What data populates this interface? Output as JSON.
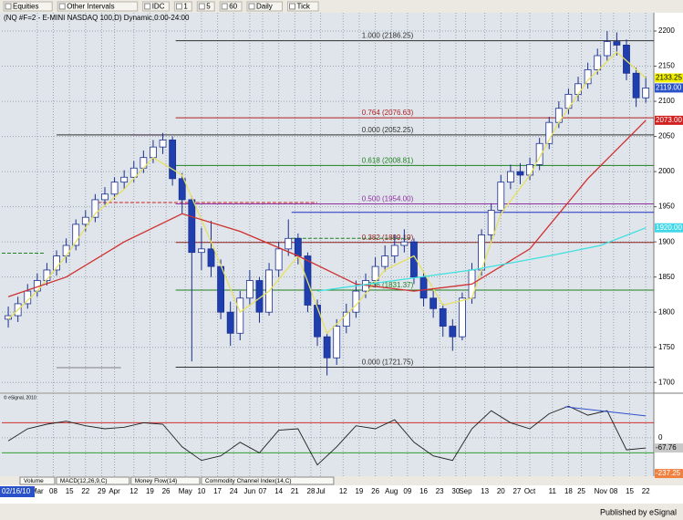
{
  "toolbar": {
    "items": [
      "Equities",
      "Other Intervals",
      "IDC",
      "1",
      "5",
      "60",
      "Daily",
      "Tick"
    ]
  },
  "chart_data": [
    {
      "type": "candlestick",
      "title": "(NQ #F=2 - E-MINI NASDAQ 100,D) Dynamic,0:00-24:00",
      "start_label": "02/16/10",
      "up_color": "#ffffff",
      "down_color": "#1f3fae",
      "edge_color": "#1a2f90",
      "x": [
        0,
        3,
        6,
        9,
        12,
        15,
        18,
        21,
        24,
        27,
        30,
        33,
        36,
        39,
        42,
        45,
        48,
        51,
        54,
        57,
        60,
        63,
        66,
        69,
        72,
        75,
        78,
        81,
        84,
        87,
        90,
        93,
        96,
        99,
        102,
        105,
        108,
        111,
        114,
        117,
        120,
        123,
        126,
        129,
        132,
        135,
        138,
        141,
        144,
        147,
        150,
        153,
        156,
        159,
        162,
        165,
        168,
        171,
        174,
        177,
        180,
        183,
        186,
        189,
        192,
        195,
        198
      ],
      "open": [
        1790,
        1795,
        1812,
        1830,
        1845,
        1860,
        1880,
        1895,
        1925,
        1935,
        1960,
        1968,
        1985,
        1992,
        2005,
        2020,
        2035,
        2045,
        1990,
        1960,
        1885,
        1890,
        1865,
        1800,
        1770,
        1820,
        1845,
        1800,
        1860,
        1890,
        1905,
        1880,
        1810,
        1765,
        1735,
        1780,
        1800,
        1830,
        1845,
        1865,
        1880,
        1895,
        1900,
        1850,
        1820,
        1805,
        1780,
        1765,
        1820,
        1860,
        1910,
        1945,
        1985,
        2000,
        1995,
        2010,
        2040,
        2070,
        2090,
        2110,
        2125,
        2145,
        2165,
        2185,
        2180,
        2140,
        2105
      ],
      "high": [
        1808,
        1822,
        1840,
        1855,
        1870,
        1888,
        1905,
        1932,
        1945,
        1968,
        1978,
        1992,
        2002,
        2015,
        2030,
        2045,
        2055,
        2050,
        1998,
        1965,
        1920,
        1930,
        1875,
        1815,
        1830,
        1860,
        1850,
        1870,
        1900,
        1932,
        1912,
        1885,
        1818,
        1772,
        1790,
        1812,
        1845,
        1855,
        1878,
        1895,
        1910,
        1918,
        1905,
        1858,
        1830,
        1812,
        1790,
        1828,
        1870,
        1918,
        1955,
        1995,
        2010,
        2012,
        2020,
        2048,
        2078,
        2100,
        2118,
        2135,
        2155,
        2175,
        2200,
        2198,
        2188,
        2148,
        2135
      ],
      "low": [
        1778,
        1786,
        1805,
        1822,
        1838,
        1852,
        1870,
        1888,
        1915,
        1928,
        1950,
        1960,
        1975,
        1985,
        1998,
        2012,
        2025,
        1980,
        1940,
        1730,
        1860,
        1850,
        1790,
        1752,
        1760,
        1810,
        1785,
        1795,
        1850,
        1880,
        1868,
        1800,
        1752,
        1710,
        1725,
        1770,
        1792,
        1820,
        1835,
        1858,
        1870,
        1885,
        1840,
        1808,
        1792,
        1765,
        1745,
        1760,
        1812,
        1852,
        1900,
        1938,
        1975,
        1982,
        1988,
        2002,
        2032,
        2062,
        2082,
        2100,
        2118,
        2138,
        2158,
        2165,
        2130,
        2092,
        2098
      ],
      "close": [
        1795,
        1812,
        1830,
        1845,
        1860,
        1880,
        1895,
        1925,
        1935,
        1960,
        1968,
        1985,
        1992,
        2005,
        2020,
        2035,
        2045,
        1990,
        1960,
        1885,
        1890,
        1865,
        1800,
        1770,
        1820,
        1845,
        1800,
        1860,
        1890,
        1905,
        1880,
        1810,
        1765,
        1735,
        1780,
        1800,
        1830,
        1845,
        1865,
        1880,
        1895,
        1900,
        1850,
        1820,
        1805,
        1780,
        1765,
        1820,
        1860,
        1910,
        1945,
        1985,
        2000,
        1995,
        2010,
        2040,
        2070,
        2090,
        2110,
        2125,
        2145,
        2165,
        2185,
        2180,
        2140,
        2105,
        2119
      ],
      "xlim": [
        -2,
        200.5
      ],
      "ylim": [
        1686,
        2226
      ],
      "yticks": [
        1700,
        1750,
        1800,
        1850,
        1900,
        1950,
        2000,
        2050,
        2100,
        2150,
        2200
      ],
      "xticks": [
        {
          "value": 9,
          "label": "Mar"
        },
        {
          "value": 14,
          "label": "08"
        },
        {
          "value": 19,
          "label": "15"
        },
        {
          "value": 24,
          "label": "22"
        },
        {
          "value": 29,
          "label": "29"
        },
        {
          "value": 33,
          "label": "Apr"
        },
        {
          "value": 39,
          "label": "12"
        },
        {
          "value": 44,
          "label": "19"
        },
        {
          "value": 49,
          "label": "26"
        },
        {
          "value": 55,
          "label": "May"
        },
        {
          "value": 60,
          "label": "10"
        },
        {
          "value": 65,
          "label": "17"
        },
        {
          "value": 70,
          "label": "24"
        },
        {
          "value": 75,
          "label": "Jun"
        },
        {
          "value": 79,
          "label": "07"
        },
        {
          "value": 84,
          "label": "14"
        },
        {
          "value": 89,
          "label": "21"
        },
        {
          "value": 94,
          "label": "28"
        },
        {
          "value": 97,
          "label": "Jul"
        },
        {
          "value": 104,
          "label": "12"
        },
        {
          "value": 109,
          "label": "19"
        },
        {
          "value": 114,
          "label": "26"
        },
        {
          "value": 119,
          "label": "Aug"
        },
        {
          "value": 124,
          "label": "09"
        },
        {
          "value": 129,
          "label": "16"
        },
        {
          "value": 134,
          "label": "23"
        },
        {
          "value": 139,
          "label": "30"
        },
        {
          "value": 142,
          "label": "Sep"
        },
        {
          "value": 148,
          "label": "13"
        },
        {
          "value": 153,
          "label": "20"
        },
        {
          "value": 158,
          "label": "27"
        },
        {
          "value": 162,
          "label": "Oct"
        },
        {
          "value": 169,
          "label": "11"
        },
        {
          "value": 174,
          "label": "18"
        },
        {
          "value": 178,
          "label": "25"
        },
        {
          "value": 184,
          "label": "Nov"
        },
        {
          "value": 188,
          "label": "08"
        },
        {
          "value": 193,
          "label": "15"
        },
        {
          "value": 198,
          "label": "22"
        }
      ],
      "grid": true,
      "lines": [
        {
          "color": "#e8e060",
          "x": [
            0,
            9,
            18,
            27,
            36,
            45,
            54,
            63,
            72,
            81,
            90,
            99,
            108,
            117,
            126,
            135,
            144,
            153,
            162,
            171,
            180,
            189,
            198
          ],
          "values": [
            1790,
            1830,
            1880,
            1940,
            1975,
            2020,
            1995,
            1900,
            1800,
            1830,
            1880,
            1770,
            1810,
            1860,
            1880,
            1810,
            1820,
            1940,
            1995,
            2070,
            2130,
            2170,
            2133.25
          ]
        },
        {
          "color": "#d03030",
          "x": [
            0,
            18,
            36,
            54,
            72,
            90,
            108,
            126,
            144,
            162,
            180,
            198
          ],
          "values": [
            1822,
            1850,
            1900,
            1940,
            1915,
            1880,
            1840,
            1830,
            1840,
            1890,
            1990,
            2073
          ]
        },
        {
          "color": "#40e0e0",
          "x": [
            96,
            120,
            144,
            168,
            184,
            198
          ],
          "values": [
            1830,
            1845,
            1860,
            1880,
            1895,
            1920
          ]
        }
      ],
      "fib_levels": [
        {
          "value": 2186.25,
          "label": "1.000 (2186.25)",
          "color": "#303030",
          "x0": 52
        },
        {
          "value": 2076.63,
          "label": "0.764 (2076.63)",
          "color": "#b02020",
          "x0": 52
        },
        {
          "value": 2052.25,
          "label": "0.000 (2052.25)",
          "color": "#303030",
          "x0": 15
        },
        {
          "value": 2008.81,
          "label": "0.618 (2008.81)",
          "color": "#208020",
          "x0": 52
        },
        {
          "value": 1954,
          "label": "0.500 (1954.00)",
          "color": "#9030a0",
          "x0": 52
        },
        {
          "value": 1899.19,
          "label": "0.382 (1899.19)",
          "color": "#902020",
          "x0": 52
        },
        {
          "value": 1831.37,
          "label": "0.236 (1831.37)",
          "color": "#208020",
          "x0": 52
        },
        {
          "value": 1721.75,
          "label": "0.000 (1721.75)",
          "color": "#303030",
          "x0": 52
        }
      ],
      "hlines": [
        {
          "value": 1942,
          "x0": 88,
          "x1": 200.5,
          "color": "#2030c0",
          "dash": false
        },
        {
          "value": 1956,
          "x0": 26,
          "x1": 96,
          "color": "#d02020",
          "dash": true
        },
        {
          "value": 1884,
          "x0": -2,
          "x1": 11,
          "color": "#208020",
          "dash": true
        },
        {
          "value": 1905,
          "x0": 88,
          "x1": 125,
          "color": "#208020",
          "dash": true
        },
        {
          "value": 1721,
          "x0": 15,
          "x1": 35,
          "color": "#808080",
          "dash": false
        },
        {
          "value": 2052,
          "x0": 38,
          "x1": 48,
          "color": "#d020d0",
          "dash": false
        }
      ],
      "markers": [
        {
          "value": 2133.25,
          "label": "2133.25",
          "color": "#f0f000",
          "text_color": "#000000"
        },
        {
          "value": 2119,
          "label": "2119.00",
          "color": "#2a52c8",
          "text_color": "#ffffff"
        },
        {
          "value": 2073,
          "label": "2073.00",
          "color": "#d02020",
          "text_color": "#ffffff"
        },
        {
          "value": 1920,
          "label": "1920.00",
          "color": "#40d8e8",
          "text_color": "#ffffff"
        }
      ]
    },
    {
      "type": "line",
      "note": "© eSignal, 2010",
      "color": "#202020",
      "x": [
        0,
        6,
        12,
        18,
        24,
        30,
        36,
        42,
        48,
        54,
        60,
        66,
        72,
        78,
        84,
        90,
        96,
        102,
        108,
        114,
        120,
        126,
        132,
        138,
        144,
        150,
        156,
        162,
        168,
        174,
        180,
        186,
        192,
        198
      ],
      "values": [
        -20,
        60,
        90,
        110,
        80,
        60,
        70,
        100,
        90,
        -60,
        -150,
        -120,
        -30,
        -100,
        50,
        60,
        -180,
        -60,
        80,
        60,
        120,
        -30,
        -120,
        -150,
        60,
        180,
        100,
        60,
        160,
        210,
        150,
        180,
        -80,
        -67.76
      ],
      "xlim": [
        -2,
        200.5
      ],
      "ylim": [
        -255,
        290
      ],
      "yticks": [
        0
      ],
      "hlines": [
        {
          "value": 100,
          "color": "#d03030"
        },
        {
          "value": -100,
          "color": "#30a030"
        }
      ],
      "lines": [
        {
          "color": "#3050d0",
          "x": [
            173,
            198
          ],
          "values": [
            206,
            145
          ]
        }
      ],
      "markers": [
        {
          "value": -67.76,
          "label": "-67.76",
          "color": "#c8c8c8",
          "text_color": "#000000"
        },
        {
          "value": -237.25,
          "label": "-237.25",
          "color": "#f08040",
          "text_color": "#ffffff"
        }
      ]
    }
  ],
  "tabs": [
    "Volume",
    "MACD(12,26,9,C)",
    "Money Flow(14)",
    "Commodity Channel Index(14,C)"
  ],
  "footer": "Published by eSignal"
}
